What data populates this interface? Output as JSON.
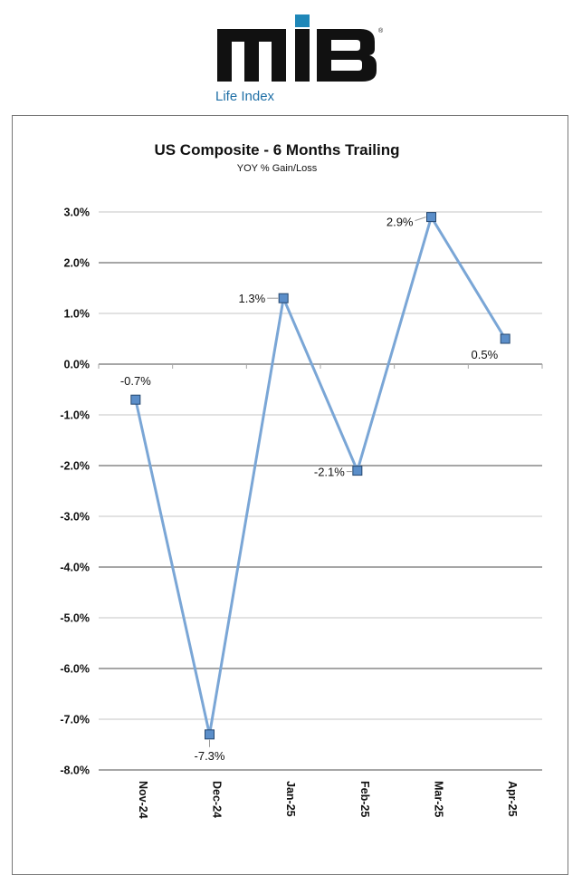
{
  "logo": {
    "brand": "MIB",
    "subtitle": "Life Index",
    "colors": {
      "letters": "#111111",
      "accent": "#1f87b8"
    }
  },
  "chart_data": {
    "type": "line",
    "title": "US Composite - 6 Months Trailing",
    "subtitle": "YOY % Gain/Loss",
    "categories": [
      "Nov-24",
      "Dec-24",
      "Jan-25",
      "Feb-25",
      "Mar-25",
      "Apr-25"
    ],
    "series": [
      {
        "values": [
          -0.7,
          -7.3,
          1.3,
          -2.1,
          2.9,
          0.5
        ],
        "data_labels": [
          "-0.7%",
          "-7.3%",
          "1.3%",
          "-2.1%",
          "2.9%",
          "0.5%"
        ]
      }
    ],
    "ylim": [
      -8.0,
      3.0
    ],
    "yticks": [
      3,
      2,
      1,
      0,
      -1,
      -2,
      -3,
      -4,
      -5,
      -6,
      -7,
      -8
    ],
    "ytick_labels": [
      "3.0%",
      "2.0%",
      "1.0%",
      "0.0%",
      "-1.0%",
      "-2.0%",
      "-3.0%",
      "-4.0%",
      "-5.0%",
      "-6.0%",
      "-7.0%",
      "-8.0%"
    ],
    "grid": true,
    "legend": "none",
    "colors": {
      "line": "#7aa6d6",
      "marker": "#5b8ec9"
    }
  }
}
